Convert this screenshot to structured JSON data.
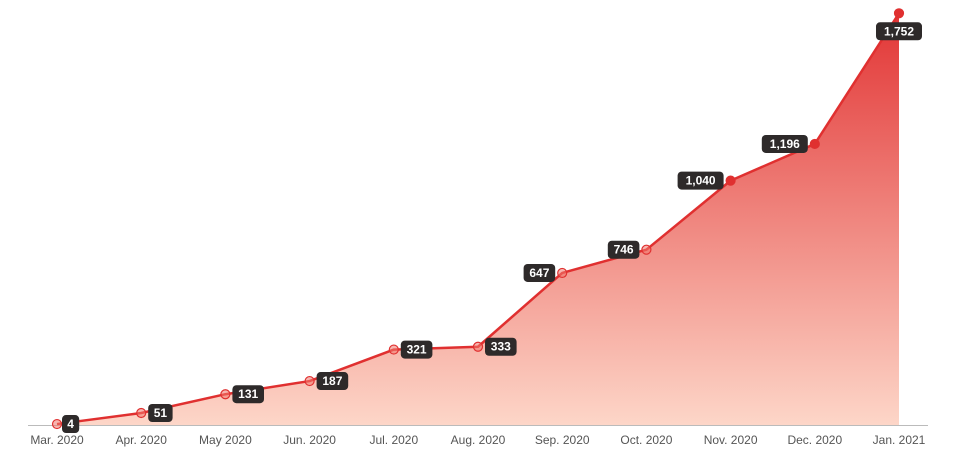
{
  "chart_data": {
    "type": "area",
    "categories": [
      "Mar. 2020",
      "Apr. 2020",
      "May 2020",
      "Jun. 2020",
      "Jul. 2020",
      "Aug. 2020",
      "Sep. 2020",
      "Oct. 2020",
      "Nov. 2020",
      "Dec. 2020",
      "Jan. 2021"
    ],
    "values": [
      4,
      51,
      131,
      187,
      321,
      333,
      647,
      746,
      1040,
      1196,
      1752
    ],
    "data_labels": [
      "4",
      "51",
      "131",
      "187",
      "321",
      "333",
      "647",
      "746",
      "1,040",
      "1,196",
      "1,752"
    ],
    "ylim": [
      0,
      1800
    ],
    "grid": false,
    "legend": "none",
    "colors": {
      "line": "#e03030",
      "fill_top": "#e23535",
      "fill_bottom": "#fdd6c8",
      "label_bg": "#2e2a2a",
      "label_text": "#ffffff",
      "axis": "#bbbbbb"
    }
  }
}
